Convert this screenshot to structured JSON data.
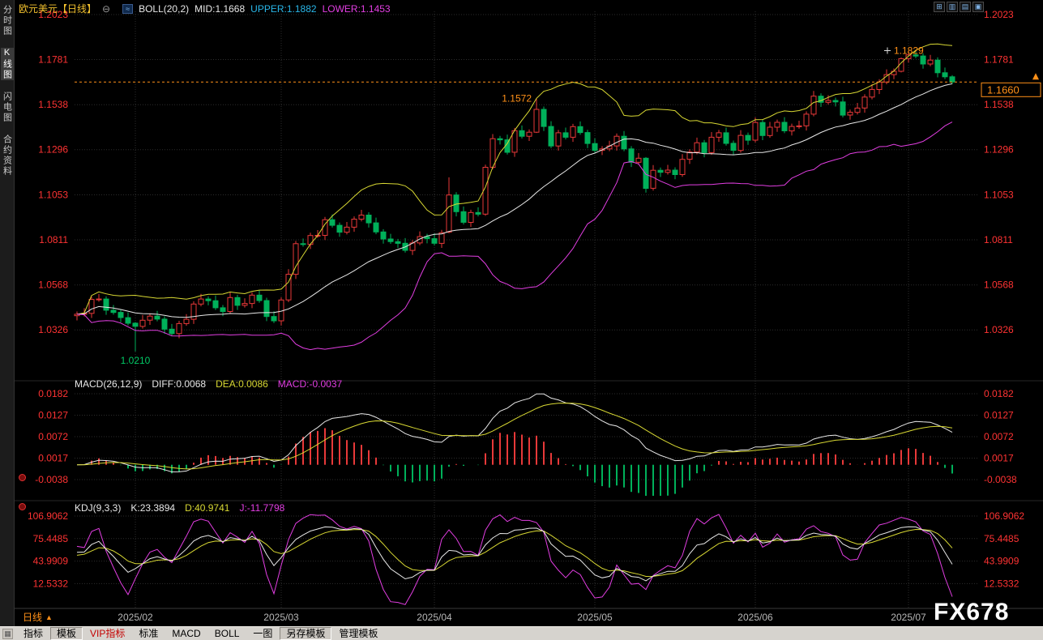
{
  "colors": {
    "up": "#e83939",
    "down": "#00b05a",
    "boll_mid": "#e8e8e8",
    "boll_upper": "#d8d833",
    "boll_lower": "#e23ee2",
    "diff": "#e8e8e8",
    "dea": "#d8d833",
    "k": "#e8e8e8",
    "j": "#e23ee2",
    "tick": "#ff3333",
    "date": "#b8b8b8",
    "accent": "#ff9018",
    "green": "#00c864",
    "grid": "#2d2d2d"
  },
  "header": {
    "title": "欧元美元【日线】",
    "collapse_glyph": "⊖",
    "boll": {
      "icon_glyph": "≈",
      "label": "BOLL(20,2)",
      "mid": "MID:1.1668",
      "upper": "UPPER:1.1882",
      "lower": "LOWER:1.1453"
    }
  },
  "window_icons": [
    {
      "glyph": "⊞"
    },
    {
      "glyph": "▥"
    },
    {
      "glyph": "▤"
    },
    {
      "glyph": "▣"
    }
  ],
  "sidebar": {
    "items": [
      {
        "label": "分时图",
        "active": false
      },
      {
        "label": "K线图",
        "active": true
      },
      {
        "label": "闪电图",
        "active": false
      },
      {
        "label": "合约资料",
        "active": false
      }
    ]
  },
  "macd_header": {
    "label": "MACD(26,12,9)",
    "diff": "DIFF:0.0068",
    "dea": "DEA:0.0086",
    "macd": "MACD:-0.0037"
  },
  "kdj_header": {
    "label": "KDJ(9,3,3)",
    "k": "K:23.3894",
    "d": "D:40.9741",
    "j": "J:-11.7798"
  },
  "bottom": {
    "period": "日线",
    "period_arrow": "▲",
    "watermark": "FX678"
  },
  "toolbar": {
    "icon_glyph": "▦",
    "items": [
      {
        "label": "指标",
        "pressed": false,
        "accent": false
      },
      {
        "label": "模板",
        "pressed": true,
        "accent": false
      },
      {
        "label": "VIP指标",
        "pressed": false,
        "accent": true
      },
      {
        "label": "标准",
        "pressed": false,
        "accent": false
      },
      {
        "label": "MACD",
        "pressed": false,
        "accent": false
      },
      {
        "label": "BOLL",
        "pressed": false,
        "accent": false
      },
      {
        "label": "一图",
        "pressed": false,
        "accent": false
      },
      {
        "label": "另存模板",
        "pressed": true,
        "accent": false
      },
      {
        "label": "管理模板",
        "pressed": false,
        "accent": false
      }
    ]
  },
  "chart_data": {
    "type": "candlestick",
    "symbol": "欧元美元",
    "period": "日线",
    "indicators": {
      "boll": {
        "period": 20,
        "mult": 2
      },
      "macd": {
        "fast": 12,
        "slow": 26,
        "signal": 9
      },
      "kdj": {
        "n": 9,
        "m1": 3,
        "m2": 3
      }
    },
    "price_range": [
      1.009,
      1.205
    ],
    "axes": {
      "price": [
        1.2023,
        1.1781,
        1.1538,
        1.1296,
        1.1053,
        1.0811,
        1.0568,
        1.0326
      ],
      "macd": [
        0.0182,
        0.0127,
        0.0072,
        0.0017,
        -0.0038
      ],
      "kdj": [
        106.9062,
        75.4485,
        43.9909,
        12.5332
      ],
      "months": [
        {
          "index": 8,
          "label": "2025/02"
        },
        {
          "index": 28,
          "label": "2025/03"
        },
        {
          "index": 49,
          "label": "2025/04"
        },
        {
          "index": 71,
          "label": "2025/05"
        },
        {
          "index": 93,
          "label": "2025/06"
        },
        {
          "index": 114,
          "label": "2025/07"
        }
      ]
    },
    "annotations": {
      "high": {
        "index": 114,
        "price": 1.1829,
        "label": "1.1829"
      },
      "swing_high": {
        "index": 63,
        "price": 1.1572,
        "label": "1.1572"
      },
      "low": {
        "index": 8,
        "price": 1.021,
        "label": "1.0210"
      },
      "last_price": {
        "value": 1.166,
        "label": "1.1660"
      }
    },
    "candles": [
      [
        1.0402,
        1.0425,
        1.0377,
        1.041
      ],
      [
        1.041,
        1.0443,
        1.0398,
        1.0415
      ],
      [
        1.0415,
        1.0505,
        1.039,
        1.049
      ],
      [
        1.049,
        1.052,
        1.0478,
        1.0492
      ],
      [
        1.0492,
        1.0507,
        1.0407,
        1.0432
      ],
      [
        1.0432,
        1.046,
        1.0408,
        1.042
      ],
      [
        1.042,
        1.0435,
        1.0367,
        1.0392
      ],
      [
        1.0392,
        1.042,
        1.035,
        1.0362
      ],
      [
        1.0362,
        1.0368,
        1.021,
        1.0345
      ],
      [
        1.0345,
        1.0406,
        1.0333,
        1.0378
      ],
      [
        1.0378,
        1.0415,
        1.0353,
        1.04
      ],
      [
        1.04,
        1.0428,
        1.0372,
        1.0384
      ],
      [
        1.0384,
        1.0399,
        1.0305,
        1.033
      ],
      [
        1.033,
        1.0358,
        1.0294,
        1.0306
      ],
      [
        1.0306,
        1.0375,
        1.0281,
        1.036
      ],
      [
        1.036,
        1.0411,
        1.0348,
        1.0383
      ],
      [
        1.0383,
        1.048,
        1.0358,
        1.0465
      ],
      [
        1.0465,
        1.052,
        1.0453,
        1.0492
      ],
      [
        1.0492,
        1.0507,
        1.0458,
        1.0483
      ],
      [
        1.0483,
        1.0511,
        1.0433,
        1.0445
      ],
      [
        1.0445,
        1.046,
        1.04,
        1.0425
      ],
      [
        1.0425,
        1.0528,
        1.0413,
        1.05
      ],
      [
        1.05,
        1.0515,
        1.0433,
        1.0458
      ],
      [
        1.0458,
        1.0496,
        1.0446,
        1.0468
      ],
      [
        1.0468,
        1.0528,
        1.0443,
        1.0513
      ],
      [
        1.0513,
        1.0541,
        1.0472,
        1.0484
      ],
      [
        1.0484,
        1.0499,
        1.0373,
        1.0398
      ],
      [
        1.0398,
        1.0426,
        1.0363,
        1.0375
      ],
      [
        1.0375,
        1.0502,
        1.035,
        1.0487
      ],
      [
        1.0487,
        1.0653,
        1.0475,
        1.0625
      ],
      [
        1.0625,
        1.0805,
        1.06,
        1.079
      ],
      [
        1.079,
        1.0818,
        1.0774,
        1.0786
      ],
      [
        1.0786,
        1.0849,
        1.0761,
        1.0834
      ],
      [
        1.0834,
        1.0863,
        1.0822,
        1.0835
      ],
      [
        1.0835,
        1.0934,
        1.081,
        1.0919
      ],
      [
        1.0919,
        1.0947,
        1.0877,
        1.0889
      ],
      [
        1.0889,
        1.0904,
        1.0827,
        1.0852
      ],
      [
        1.0852,
        1.0907,
        1.084,
        1.0879
      ],
      [
        1.0879,
        1.0937,
        1.0854,
        1.0922
      ],
      [
        1.0922,
        1.0972,
        1.091,
        1.0944
      ],
      [
        1.0944,
        1.0959,
        1.0877,
        1.0902
      ],
      [
        1.0902,
        1.093,
        1.0841,
        1.0853
      ],
      [
        1.0853,
        1.0868,
        1.079,
        1.0815
      ],
      [
        1.0815,
        1.0843,
        1.0789,
        1.0801
      ],
      [
        1.0801,
        1.0816,
        1.0767,
        1.0792
      ],
      [
        1.0792,
        1.082,
        1.0742,
        1.0754
      ],
      [
        1.0754,
        1.0809,
        1.0729,
        1.0794
      ],
      [
        1.0794,
        1.0856,
        1.0782,
        1.0828
      ],
      [
        1.0828,
        1.0843,
        1.0792,
        1.0817
      ],
      [
        1.0817,
        1.0845,
        1.078,
        1.0792
      ],
      [
        1.0792,
        1.0864,
        1.0767,
        1.0849
      ],
      [
        1.0852,
        1.1147,
        1.0846,
        1.1052
      ],
      [
        1.1052,
        1.1067,
        1.0937,
        1.0962
      ],
      [
        1.0962,
        1.099,
        1.0893,
        1.0905
      ],
      [
        1.0905,
        1.0973,
        1.088,
        1.0958
      ],
      [
        1.0958,
        1.0986,
        1.0937,
        1.0949
      ],
      [
        1.0949,
        1.1215,
        1.094,
        1.1201
      ],
      [
        1.1201,
        1.138,
        1.119,
        1.1355
      ],
      [
        1.1355,
        1.137,
        1.1324,
        1.1349
      ],
      [
        1.1349,
        1.1377,
        1.127,
        1.1282
      ],
      [
        1.1282,
        1.1413,
        1.1257,
        1.1398
      ],
      [
        1.1398,
        1.1426,
        1.1356,
        1.1368
      ],
      [
        1.1368,
        1.1405,
        1.1343,
        1.139
      ],
      [
        1.139,
        1.1572,
        1.1386,
        1.1513
      ],
      [
        1.1513,
        1.1528,
        1.1396,
        1.1421
      ],
      [
        1.1421,
        1.1449,
        1.1304,
        1.1316
      ],
      [
        1.1316,
        1.1402,
        1.1291,
        1.1387
      ],
      [
        1.1387,
        1.1415,
        1.1351,
        1.1363
      ],
      [
        1.1363,
        1.1435,
        1.1338,
        1.142
      ],
      [
        1.142,
        1.1448,
        1.1376,
        1.1388
      ],
      [
        1.1388,
        1.1403,
        1.1304,
        1.1329
      ],
      [
        1.1329,
        1.1357,
        1.128,
        1.1292
      ],
      [
        1.1292,
        1.1315,
        1.1267,
        1.13
      ],
      [
        1.13,
        1.1344,
        1.1288,
        1.1316
      ],
      [
        1.1316,
        1.1383,
        1.1291,
        1.1368
      ],
      [
        1.1368,
        1.1396,
        1.1288,
        1.13
      ],
      [
        1.13,
        1.1315,
        1.1203,
        1.1228
      ],
      [
        1.1228,
        1.1278,
        1.1216,
        1.125
      ],
      [
        1.125,
        1.1256,
        1.1065,
        1.1088
      ],
      [
        1.1088,
        1.1213,
        1.1076,
        1.1185
      ],
      [
        1.1185,
        1.12,
        1.1149,
        1.1174
      ],
      [
        1.1174,
        1.1214,
        1.1162,
        1.1186
      ],
      [
        1.1186,
        1.1201,
        1.1137,
        1.1162
      ],
      [
        1.1162,
        1.1272,
        1.115,
        1.1244
      ],
      [
        1.1244,
        1.1298,
        1.1219,
        1.1283
      ],
      [
        1.1283,
        1.1361,
        1.1271,
        1.1333
      ],
      [
        1.1333,
        1.1348,
        1.1255,
        1.128
      ],
      [
        1.128,
        1.1391,
        1.1268,
        1.1363
      ],
      [
        1.1363,
        1.1402,
        1.1338,
        1.1387
      ],
      [
        1.1387,
        1.1415,
        1.1318,
        1.133
      ],
      [
        1.133,
        1.1345,
        1.1267,
        1.1292
      ],
      [
        1.1292,
        1.1401,
        1.128,
        1.1373
      ],
      [
        1.1373,
        1.1388,
        1.1322,
        1.1347
      ],
      [
        1.1347,
        1.147,
        1.1335,
        1.1442
      ],
      [
        1.1442,
        1.1457,
        1.1347,
        1.1372
      ],
      [
        1.1372,
        1.1445,
        1.136,
        1.1417
      ],
      [
        1.1417,
        1.1458,
        1.1392,
        1.1443
      ],
      [
        1.1443,
        1.1471,
        1.1385,
        1.1397
      ],
      [
        1.1397,
        1.1436,
        1.1372,
        1.1421
      ],
      [
        1.1421,
        1.1452,
        1.1409,
        1.1424
      ],
      [
        1.1424,
        1.1502,
        1.1399,
        1.1487
      ],
      [
        1.1487,
        1.1612,
        1.1475,
        1.1584
      ],
      [
        1.1584,
        1.1599,
        1.1526,
        1.1551
      ],
      [
        1.1551,
        1.1589,
        1.1539,
        1.1561
      ],
      [
        1.1561,
        1.1576,
        1.1528,
        1.1553
      ],
      [
        1.1553,
        1.1581,
        1.147,
        1.1482
      ],
      [
        1.1482,
        1.1512,
        1.1457,
        1.1497
      ],
      [
        1.1497,
        1.1548,
        1.1485,
        1.152
      ],
      [
        1.152,
        1.1594,
        1.1495,
        1.1579
      ],
      [
        1.1579,
        1.1648,
        1.1567,
        1.162
      ],
      [
        1.162,
        1.1675,
        1.1595,
        1.166
      ],
      [
        1.166,
        1.1728,
        1.1648,
        1.17
      ],
      [
        1.17,
        1.1733,
        1.1675,
        1.1718
      ],
      [
        1.1718,
        1.1792,
        1.1712,
        1.1786
      ],
      [
        1.1786,
        1.1829,
        1.1765,
        1.1806
      ],
      [
        1.1806,
        1.1828,
        1.1788,
        1.18
      ],
      [
        1.18,
        1.1815,
        1.1732,
        1.1757
      ],
      [
        1.1757,
        1.1806,
        1.1745,
        1.1778
      ],
      [
        1.1778,
        1.1793,
        1.1685,
        1.171
      ],
      [
        1.171,
        1.1738,
        1.1676,
        1.1688
      ],
      [
        1.1688,
        1.1697,
        1.1648,
        1.166
      ]
    ]
  }
}
